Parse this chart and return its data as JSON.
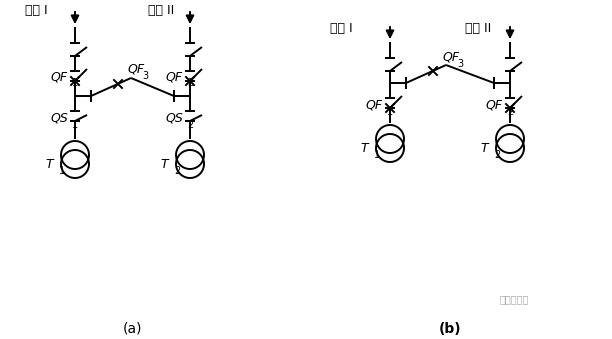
{
  "bg_color": "#ffffff",
  "line_color": "#000000",
  "fig_width": 6.12,
  "fig_height": 3.39,
  "dpi": 100,
  "label_a": "(a)",
  "label_b": "(b)",
  "watermark": "电气设计圈"
}
